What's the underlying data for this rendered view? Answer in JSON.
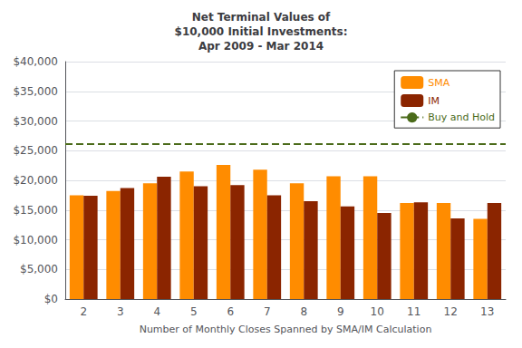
{
  "chart_data": {
    "type": "bar",
    "title": "Net Terminal Values of\n$10,000 Initial Investments:\nApr 2009 - Mar 2014",
    "x_label": "Number of Monthly Closes Spanned by SMA/IM Calculation",
    "categories": [
      2,
      3,
      4,
      5,
      6,
      7,
      8,
      9,
      10,
      11,
      12,
      13
    ],
    "series": [
      {
        "name": "SMA",
        "type": "bar",
        "color": "#FF8C00",
        "values": [
          17500,
          18200,
          19500,
          21500,
          22600,
          21800,
          19500,
          20700,
          20700,
          16200,
          16200,
          13500
        ]
      },
      {
        "name": "IM",
        "type": "bar",
        "color": "#8B2500",
        "values": [
          17400,
          18700,
          20600,
          19000,
          19200,
          17500,
          16500,
          15600,
          14500,
          16300,
          13600,
          16200
        ]
      },
      {
        "name": "Buy and Hold",
        "type": "hline",
        "color": "#4B6B1A",
        "line_style": "dashed",
        "value": 26200
      }
    ],
    "ylim": [
      0,
      40000
    ],
    "yticks": [
      {
        "value": 0,
        "label": "$0"
      },
      {
        "value": 5000,
        "label": "$5,000"
      },
      {
        "value": 10000,
        "label": "$10,000"
      },
      {
        "value": 15000,
        "label": "$15,000"
      },
      {
        "value": 20000,
        "label": "$20,000"
      },
      {
        "value": 25000,
        "label": "$25,000"
      },
      {
        "value": 30000,
        "label": "$30,000"
      },
      {
        "value": 35000,
        "label": "$35,000"
      },
      {
        "value": 40000,
        "label": "$40,000"
      }
    ],
    "grid": true,
    "legend": "upper right"
  }
}
